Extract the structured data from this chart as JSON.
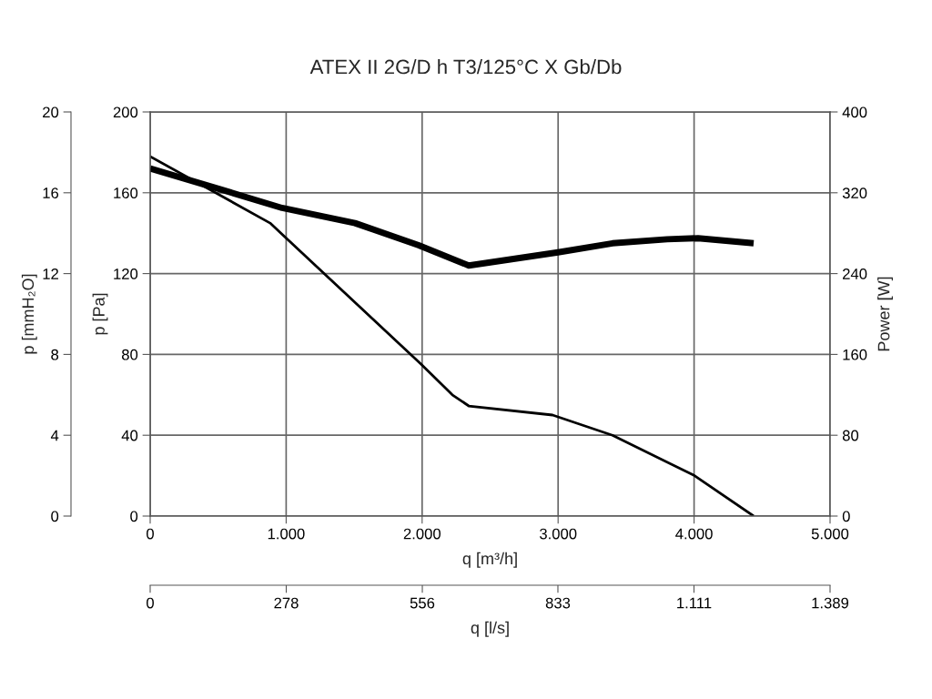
{
  "chart_data": {
    "type": "line",
    "title": "ATEX II 2G/D h T3/125°C X Gb/Db",
    "xlabel": "q [m³/h]",
    "ylabel": "p [Pa]",
    "y2label": "Power [W]",
    "y3label": "p [mmH₂O]",
    "x2label": "q [l/s]",
    "xlim": [
      0,
      5000
    ],
    "xticks": [
      0,
      {
        "value": 1000,
        "label": "1.000"
      },
      {
        "value": 2000,
        "label": "2.000"
      },
      {
        "value": 3000,
        "label": "3.000"
      },
      {
        "value": 4000,
        "label": "4.000"
      },
      {
        "value": 5000,
        "label": "5.000"
      }
    ],
    "ylim": [
      0,
      200
    ],
    "yticks": [
      0,
      40,
      80,
      120,
      160,
      200
    ],
    "y2lim": [
      0,
      400
    ],
    "y2ticks": [
      0,
      80,
      160,
      240,
      320,
      400
    ],
    "y3lim": [
      0,
      20
    ],
    "y3ticks": [
      0,
      4,
      8,
      12,
      16,
      20
    ],
    "x2lim": [
      0,
      1389
    ],
    "x2ticks": [
      0,
      278,
      556,
      833,
      {
        "value": 1111,
        "label": "1.111"
      },
      {
        "value": 1389,
        "label": "1.389"
      }
    ],
    "grid": true,
    "series": [
      {
        "color": "#000000",
        "axis": "y",
        "x": [
          0,
          882,
          1995,
          2222,
          2343,
          2959,
          3400,
          4003,
          4438
        ],
        "values": [
          178,
          145,
          75,
          60,
          54.5,
          50,
          40,
          20,
          0
        ]
      },
      {
        "color": "#000000",
        "axis": "y2",
        "x": [
          0,
          502,
          970,
          1506,
          1975,
          2343,
          2999,
          3400,
          3802,
          4029,
          4438
        ],
        "values": [
          344,
          324,
          305,
          290,
          268,
          248,
          261,
          270,
          274,
          275,
          270
        ]
      }
    ]
  }
}
